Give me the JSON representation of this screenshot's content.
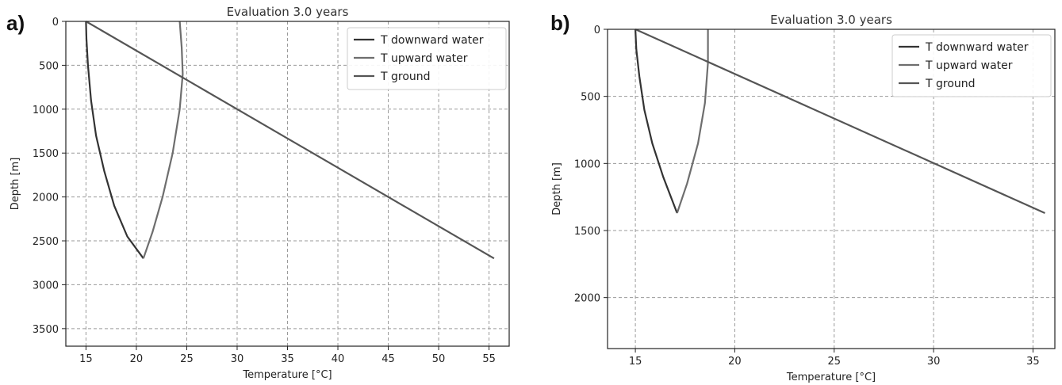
{
  "chart_data": [
    {
      "panel_label": "a)",
      "type": "line",
      "title": "Evaluation 3.0 years",
      "xlabel": "Temperature [°C]",
      "ylabel": "Depth [m]",
      "xlim": [
        13,
        57
      ],
      "ylim": [
        3700,
        0
      ],
      "y_inverted": true,
      "xticks": [
        15,
        20,
        25,
        30,
        35,
        40,
        45,
        50,
        55
      ],
      "yticks": [
        0,
        500,
        1000,
        1500,
        2000,
        2500,
        3000,
        3500
      ],
      "grid": true,
      "legend_position": "top-right",
      "colors": {
        "downward": "#333333",
        "upward": "#6e6e6e",
        "ground": "#555555"
      },
      "series": [
        {
          "name": "T downward water",
          "points": [
            [
              15.0,
              0
            ],
            [
              15.05,
              200
            ],
            [
              15.2,
              500
            ],
            [
              15.5,
              900
            ],
            [
              16.0,
              1300
            ],
            [
              16.8,
              1700
            ],
            [
              17.8,
              2100
            ],
            [
              19.1,
              2450
            ],
            [
              20.7,
              2700
            ]
          ]
        },
        {
          "name": "T upward water",
          "points": [
            [
              20.7,
              2700
            ],
            [
              21.6,
              2400
            ],
            [
              22.6,
              2000
            ],
            [
              23.6,
              1500
            ],
            [
              24.3,
              1000
            ],
            [
              24.6,
              600
            ],
            [
              24.5,
              300
            ],
            [
              24.3,
              0
            ]
          ]
        },
        {
          "name": "T ground",
          "points": [
            [
              15.0,
              0
            ],
            [
              55.5,
              2700
            ]
          ]
        }
      ]
    },
    {
      "panel_label": "b)",
      "type": "line",
      "title": "Evaluation 3.0 years",
      "xlabel": "Temperature [°C]",
      "ylabel": "Depth [m]",
      "xlim": [
        13.6,
        36.1
      ],
      "ylim": [
        2380,
        0
      ],
      "y_inverted": true,
      "xticks": [
        15,
        20,
        25,
        30,
        35
      ],
      "yticks": [
        0,
        500,
        1000,
        1500,
        2000
      ],
      "grid": true,
      "legend_position": "top-right",
      "colors": {
        "downward": "#333333",
        "upward": "#6e6e6e",
        "ground": "#555555"
      },
      "series": [
        {
          "name": "T downward water",
          "points": [
            [
              15.0,
              0
            ],
            [
              15.05,
              150
            ],
            [
              15.2,
              350
            ],
            [
              15.45,
              600
            ],
            [
              15.85,
              850
            ],
            [
              16.4,
              1100
            ],
            [
              17.1,
              1370
            ]
          ]
        },
        {
          "name": "T upward water",
          "points": [
            [
              17.1,
              1370
            ],
            [
              17.6,
              1150
            ],
            [
              18.15,
              850
            ],
            [
              18.5,
              550
            ],
            [
              18.65,
              250
            ],
            [
              18.65,
              0
            ]
          ]
        },
        {
          "name": "T ground",
          "points": [
            [
              15.0,
              0
            ],
            [
              35.6,
              1370
            ]
          ]
        }
      ]
    }
  ]
}
